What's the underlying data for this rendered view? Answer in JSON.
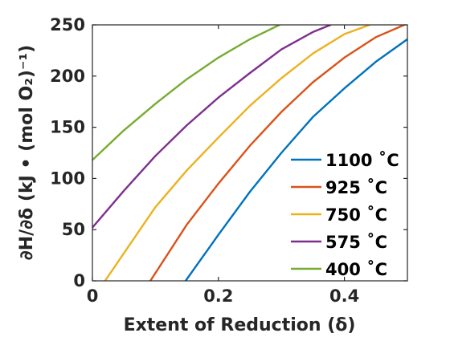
{
  "chart_data": {
    "type": "line",
    "xlabel": "Extent of Reduction (δ)",
    "ylabel": "∂H/∂δ (kJ • (mol O₂)⁻¹)",
    "xlim": [
      0,
      0.5
    ],
    "ylim": [
      0,
      250
    ],
    "xticks": [
      0,
      0.2,
      0.4
    ],
    "xtick_labels": [
      "0",
      "0.2",
      "0.4"
    ],
    "yticks": [
      0,
      50,
      100,
      150,
      200,
      250
    ],
    "ytick_labels": [
      "0",
      "50",
      "100",
      "150",
      "200",
      "250"
    ],
    "grid": false,
    "legend_position": "bottom-right",
    "series": [
      {
        "name": "1100  ˚C",
        "color": "#0072BD",
        "x": [
          0.148,
          0.2,
          0.25,
          0.3,
          0.35,
          0.4,
          0.45,
          0.5
        ],
        "y": [
          0,
          45,
          87,
          125,
          160,
          188,
          214,
          236
        ]
      },
      {
        "name": "925   ˚C",
        "color": "#D95319",
        "x": [
          0.092,
          0.15,
          0.2,
          0.25,
          0.3,
          0.35,
          0.4,
          0.45,
          0.495
        ],
        "y": [
          0,
          55,
          95,
          132,
          165,
          194,
          218,
          238,
          250
        ]
      },
      {
        "name": "750   ˚C",
        "color": "#EDB120",
        "x": [
          0.02,
          0.1,
          0.15,
          0.2,
          0.25,
          0.3,
          0.35,
          0.4,
          0.44
        ],
        "y": [
          0,
          72,
          108,
          140,
          171,
          198,
          222,
          241,
          250
        ]
      },
      {
        "name": "575   ˚C",
        "color": "#7E2F8E",
        "x": [
          0.0,
          0.05,
          0.1,
          0.15,
          0.2,
          0.25,
          0.3,
          0.35,
          0.378
        ],
        "y": [
          52,
          88,
          122,
          152,
          179,
          203,
          226,
          243,
          250
        ]
      },
      {
        "name": "400   ˚C",
        "color": "#77AC30",
        "x": [
          0.0,
          0.05,
          0.1,
          0.15,
          0.2,
          0.25,
          0.297
        ],
        "y": [
          118,
          147,
          173,
          197,
          218,
          236,
          250
        ]
      }
    ]
  }
}
